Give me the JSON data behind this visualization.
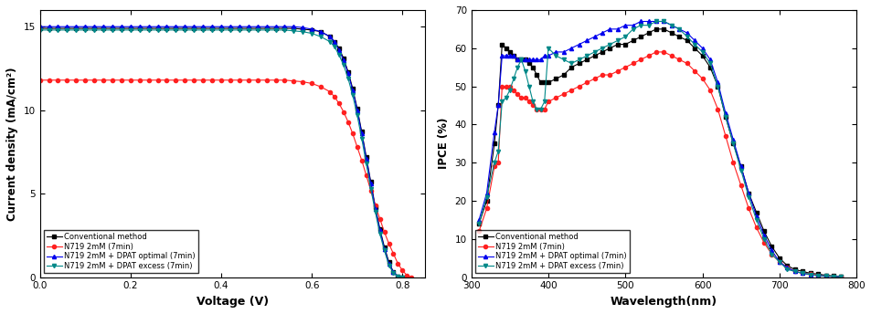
{
  "plot1": {
    "xlabel": "Voltage (V)",
    "ylabel": "Current density (mA/cm²)",
    "xlim": [
      0.0,
      0.85
    ],
    "ylim": [
      0,
      16
    ],
    "yticks": [
      0,
      5,
      10,
      15
    ],
    "xticks": [
      0.0,
      0.2,
      0.4,
      0.6,
      0.8
    ],
    "legend_labels": [
      "Conventional method",
      "N719 2mM (7min)",
      "N719 2mM + DPAT optimal (7min)",
      "N719 2mM + DPAT excess (7min)"
    ],
    "colors": [
      "#000000",
      "#ff2020",
      "#0000ee",
      "#008888"
    ],
    "markers": [
      "s",
      "o",
      "^",
      "v"
    ],
    "series": {
      "conventional": {
        "x": [
          0.0,
          0.02,
          0.04,
          0.06,
          0.08,
          0.1,
          0.12,
          0.14,
          0.16,
          0.18,
          0.2,
          0.22,
          0.24,
          0.26,
          0.28,
          0.3,
          0.32,
          0.34,
          0.36,
          0.38,
          0.4,
          0.42,
          0.44,
          0.46,
          0.48,
          0.5,
          0.52,
          0.54,
          0.56,
          0.58,
          0.6,
          0.62,
          0.64,
          0.65,
          0.66,
          0.67,
          0.68,
          0.69,
          0.7,
          0.71,
          0.72,
          0.73,
          0.74,
          0.75,
          0.76,
          0.77,
          0.78,
          0.79,
          0.8
        ],
        "y": [
          14.9,
          14.9,
          14.9,
          14.9,
          14.9,
          14.9,
          14.9,
          14.9,
          14.9,
          14.9,
          14.9,
          14.9,
          14.9,
          14.9,
          14.9,
          14.9,
          14.9,
          14.9,
          14.9,
          14.9,
          14.9,
          14.9,
          14.9,
          14.9,
          14.9,
          14.9,
          14.9,
          14.9,
          14.9,
          14.85,
          14.8,
          14.7,
          14.4,
          14.1,
          13.7,
          13.1,
          12.3,
          11.3,
          10.1,
          8.7,
          7.2,
          5.7,
          4.2,
          2.9,
          1.8,
          0.9,
          0.3,
          0.05,
          0.0
        ]
      },
      "n719_2mM": {
        "x": [
          0.0,
          0.02,
          0.04,
          0.06,
          0.08,
          0.1,
          0.12,
          0.14,
          0.16,
          0.18,
          0.2,
          0.22,
          0.24,
          0.26,
          0.28,
          0.3,
          0.32,
          0.34,
          0.36,
          0.38,
          0.4,
          0.42,
          0.44,
          0.46,
          0.48,
          0.5,
          0.52,
          0.54,
          0.56,
          0.58,
          0.6,
          0.62,
          0.64,
          0.65,
          0.66,
          0.67,
          0.68,
          0.69,
          0.7,
          0.71,
          0.72,
          0.73,
          0.74,
          0.75,
          0.76,
          0.77,
          0.78,
          0.79,
          0.8,
          0.81,
          0.82
        ],
        "y": [
          11.8,
          11.8,
          11.8,
          11.8,
          11.8,
          11.8,
          11.8,
          11.8,
          11.8,
          11.8,
          11.8,
          11.8,
          11.8,
          11.8,
          11.8,
          11.8,
          11.8,
          11.8,
          11.8,
          11.8,
          11.8,
          11.8,
          11.8,
          11.8,
          11.8,
          11.8,
          11.8,
          11.8,
          11.75,
          11.7,
          11.6,
          11.4,
          11.1,
          10.8,
          10.4,
          9.9,
          9.3,
          8.6,
          7.8,
          7.0,
          6.1,
          5.2,
          4.3,
          3.5,
          2.7,
          2.0,
          1.4,
          0.8,
          0.4,
          0.1,
          0.0
        ]
      },
      "dpat_optimal": {
        "x": [
          0.0,
          0.02,
          0.04,
          0.06,
          0.08,
          0.1,
          0.12,
          0.14,
          0.16,
          0.18,
          0.2,
          0.22,
          0.24,
          0.26,
          0.28,
          0.3,
          0.32,
          0.34,
          0.36,
          0.38,
          0.4,
          0.42,
          0.44,
          0.46,
          0.48,
          0.5,
          0.52,
          0.54,
          0.56,
          0.58,
          0.6,
          0.62,
          0.64,
          0.65,
          0.66,
          0.67,
          0.68,
          0.69,
          0.7,
          0.71,
          0.72,
          0.73,
          0.74,
          0.75,
          0.76,
          0.77,
          0.78,
          0.79,
          0.8
        ],
        "y": [
          15.0,
          15.0,
          15.0,
          15.0,
          15.0,
          15.0,
          15.0,
          15.0,
          15.0,
          15.0,
          15.0,
          15.0,
          15.0,
          15.0,
          15.0,
          15.0,
          15.0,
          15.0,
          15.0,
          15.0,
          15.0,
          15.0,
          15.0,
          15.0,
          15.0,
          15.0,
          15.0,
          15.0,
          15.0,
          14.95,
          14.85,
          14.7,
          14.4,
          14.1,
          13.6,
          13.0,
          12.2,
          11.2,
          10.0,
          8.6,
          7.1,
          5.6,
          4.1,
          2.8,
          1.7,
          0.8,
          0.3,
          0.05,
          0.0
        ]
      },
      "dpat_excess": {
        "x": [
          0.0,
          0.02,
          0.04,
          0.06,
          0.08,
          0.1,
          0.12,
          0.14,
          0.16,
          0.18,
          0.2,
          0.22,
          0.24,
          0.26,
          0.28,
          0.3,
          0.32,
          0.34,
          0.36,
          0.38,
          0.4,
          0.42,
          0.44,
          0.46,
          0.48,
          0.5,
          0.52,
          0.54,
          0.56,
          0.58,
          0.6,
          0.62,
          0.64,
          0.65,
          0.66,
          0.67,
          0.68,
          0.69,
          0.7,
          0.71,
          0.72,
          0.73,
          0.74,
          0.75,
          0.76,
          0.77,
          0.78,
          0.79,
          0.8
        ],
        "y": [
          14.8,
          14.8,
          14.8,
          14.8,
          14.8,
          14.8,
          14.8,
          14.8,
          14.8,
          14.8,
          14.8,
          14.8,
          14.8,
          14.8,
          14.8,
          14.8,
          14.8,
          14.8,
          14.8,
          14.8,
          14.8,
          14.8,
          14.8,
          14.8,
          14.8,
          14.8,
          14.8,
          14.8,
          14.75,
          14.7,
          14.6,
          14.4,
          14.1,
          13.8,
          13.3,
          12.7,
          11.9,
          10.9,
          9.7,
          8.3,
          6.8,
          5.3,
          3.9,
          2.6,
          1.6,
          0.7,
          0.25,
          0.05,
          0.0
        ]
      }
    }
  },
  "plot2": {
    "xlabel": "Wavelength(nm)",
    "ylabel": "IPCE (%)",
    "xlim": [
      300,
      800
    ],
    "ylim": [
      0,
      70
    ],
    "yticks": [
      0,
      10,
      20,
      30,
      40,
      50,
      60,
      70
    ],
    "xticks": [
      300,
      400,
      500,
      600,
      700,
      800
    ],
    "legend_labels": [
      "Conventional method",
      "N719 2mM (7min)",
      "N719 2mM + DPAT optimal (7min)",
      "N719 2mM + DPAT excess (7min)"
    ],
    "colors": [
      "#000000",
      "#ff2020",
      "#0000ee",
      "#008888"
    ],
    "markers": [
      "s",
      "o",
      "^",
      "v"
    ],
    "series": {
      "conventional": {
        "x": [
          310,
          320,
          330,
          335,
          340,
          345,
          350,
          355,
          360,
          365,
          370,
          375,
          380,
          385,
          390,
          395,
          400,
          410,
          420,
          430,
          440,
          450,
          460,
          470,
          480,
          490,
          500,
          510,
          520,
          530,
          540,
          550,
          560,
          570,
          580,
          590,
          600,
          610,
          620,
          630,
          640,
          650,
          660,
          670,
          680,
          690,
          700,
          710,
          720,
          730,
          740,
          750,
          760,
          770,
          780
        ],
        "y": [
          14,
          20,
          35,
          45,
          61,
          60,
          59,
          58,
          57,
          57,
          57,
          56,
          55,
          53,
          51,
          51,
          51,
          52,
          53,
          55,
          56,
          57,
          58,
          59,
          60,
          61,
          61,
          62,
          63,
          64,
          65,
          65,
          64,
          63,
          62,
          60,
          58,
          55,
          50,
          42,
          35,
          29,
          22,
          17,
          12,
          8,
          5,
          3,
          2,
          1.5,
          1,
          0.8,
          0.5,
          0.3,
          0.1
        ]
      },
      "n719_2mM": {
        "x": [
          310,
          320,
          330,
          335,
          340,
          345,
          350,
          355,
          360,
          365,
          370,
          375,
          380,
          385,
          390,
          395,
          400,
          410,
          420,
          430,
          440,
          450,
          460,
          470,
          480,
          490,
          500,
          510,
          520,
          530,
          540,
          550,
          560,
          570,
          580,
          590,
          600,
          610,
          620,
          630,
          640,
          650,
          660,
          670,
          680,
          690,
          700,
          710,
          720,
          730,
          740,
          750,
          760,
          770,
          780
        ],
        "y": [
          12,
          18,
          29,
          30,
          50,
          50,
          50,
          49,
          48,
          47,
          47,
          46,
          45,
          44,
          44,
          44,
          46,
          47,
          48,
          49,
          50,
          51,
          52,
          53,
          53,
          54,
          55,
          56,
          57,
          58,
          59,
          59,
          58,
          57,
          56,
          54,
          52,
          49,
          44,
          37,
          30,
          24,
          18,
          13,
          9,
          6,
          4,
          2.5,
          1.5,
          1,
          0.8,
          0.5,
          0.3,
          0.2,
          0.1
        ]
      },
      "dpat_optimal": {
        "x": [
          310,
          320,
          330,
          335,
          340,
          345,
          350,
          355,
          360,
          365,
          370,
          375,
          380,
          385,
          390,
          395,
          400,
          410,
          420,
          430,
          440,
          450,
          460,
          470,
          480,
          490,
          500,
          510,
          520,
          530,
          540,
          550,
          560,
          570,
          580,
          590,
          600,
          610,
          620,
          630,
          640,
          650,
          660,
          670,
          680,
          690,
          700,
          710,
          720,
          730,
          740,
          750,
          760,
          770,
          780
        ],
        "y": [
          15,
          22,
          38,
          45,
          58,
          58,
          58,
          58,
          57,
          57,
          57,
          57,
          57,
          57,
          57,
          58,
          58,
          59,
          59,
          60,
          61,
          62,
          63,
          64,
          65,
          65,
          66,
          66,
          67,
          67,
          67,
          67,
          66,
          65,
          64,
          62,
          60,
          57,
          51,
          43,
          36,
          29,
          22,
          16,
          11,
          7,
          4,
          2.5,
          1.5,
          1,
          0.7,
          0.4,
          0.3,
          0.2,
          0.1
        ]
      },
      "dpat_excess": {
        "x": [
          310,
          320,
          330,
          335,
          340,
          345,
          350,
          355,
          360,
          365,
          370,
          375,
          380,
          385,
          390,
          395,
          400,
          410,
          420,
          430,
          440,
          450,
          460,
          470,
          480,
          490,
          500,
          510,
          520,
          530,
          540,
          550,
          560,
          570,
          580,
          590,
          600,
          610,
          620,
          630,
          640,
          650,
          660,
          670,
          680,
          690,
          700,
          710,
          720,
          730,
          740,
          750,
          760,
          770,
          780
        ],
        "y": [
          14,
          21,
          30,
          33,
          46,
          47,
          49,
          52,
          55,
          57,
          54,
          50,
          46,
          44,
          44,
          46,
          60,
          58,
          57,
          56,
          57,
          58,
          59,
          60,
          61,
          62,
          63,
          65,
          66,
          66,
          67,
          67,
          66,
          65,
          63,
          61,
          59,
          56,
          50,
          42,
          35,
          28,
          21,
          15,
          10,
          6,
          4,
          2,
          1.5,
          1,
          0.7,
          0.4,
          0.3,
          0.2,
          0.1
        ]
      }
    }
  },
  "figsize": [
    9.54,
    3.44
  ],
  "dpi": 100
}
